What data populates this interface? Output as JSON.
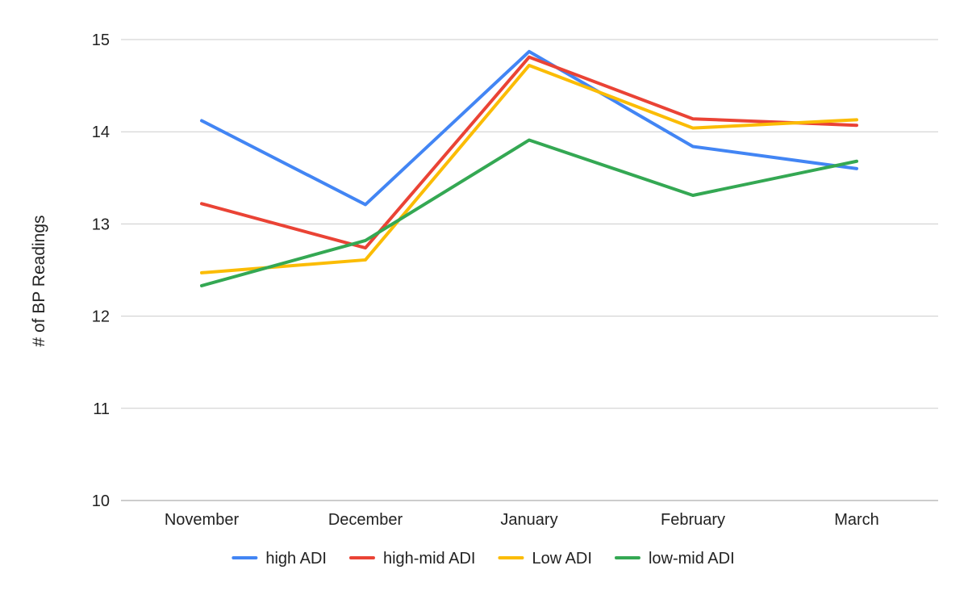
{
  "chart_data": {
    "type": "line",
    "title": "",
    "xlabel": "",
    "ylabel": "# of BP Readings",
    "categories": [
      "November",
      "December",
      "January",
      "February",
      "March"
    ],
    "ylim": [
      10,
      15
    ],
    "yticks": [
      10,
      11,
      12,
      13,
      14,
      15
    ],
    "grid": true,
    "legend_position": "bottom",
    "series": [
      {
        "name": "high ADI",
        "color": "#4285F4",
        "values": [
          14.12,
          13.21,
          14.87,
          13.84,
          13.6
        ]
      },
      {
        "name": "high-mid ADI",
        "color": "#EA4335",
        "values": [
          13.22,
          12.74,
          14.81,
          14.14,
          14.07
        ]
      },
      {
        "name": "Low ADI",
        "color": "#FBBC04",
        "values": [
          12.47,
          12.61,
          14.72,
          14.04,
          14.13
        ]
      },
      {
        "name": "low-mid ADI",
        "color": "#34A853",
        "values": [
          12.33,
          12.82,
          13.91,
          13.31,
          13.68
        ]
      }
    ]
  }
}
